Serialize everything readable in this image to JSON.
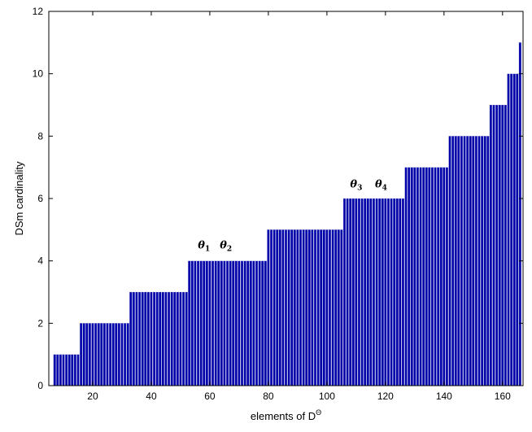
{
  "chart_data": {
    "type": "bar",
    "title": "",
    "xlabel": "elements of D",
    "xlabel_superscript": "Θ",
    "ylabel": "DSm cardinality",
    "xlim": [
      5,
      167
    ],
    "ylim": [
      0,
      12
    ],
    "xticks": [
      "20",
      "40",
      "60",
      "80",
      "100",
      "120",
      "140",
      "160"
    ],
    "yticks": [
      "0",
      "2",
      "4",
      "6",
      "8",
      "10",
      "12"
    ],
    "grid": false,
    "bar_color": "#0000a8",
    "bar_edge_color": "#a9a9e0",
    "steps": [
      {
        "x_from": 7,
        "x_to": 15,
        "value": 1
      },
      {
        "x_from": 16,
        "x_to": 32,
        "value": 2
      },
      {
        "x_from": 33,
        "x_to": 52,
        "value": 3
      },
      {
        "x_from": 53,
        "x_to": 79,
        "value": 4
      },
      {
        "x_from": 80,
        "x_to": 105,
        "value": 5
      },
      {
        "x_from": 106,
        "x_to": 126,
        "value": 6
      },
      {
        "x_from": 127,
        "x_to": 141,
        "value": 7
      },
      {
        "x_from": 142,
        "x_to": 155,
        "value": 8
      },
      {
        "x_from": 156,
        "x_to": 161,
        "value": 9
      },
      {
        "x_from": 162,
        "x_to": 165,
        "value": 10
      },
      {
        "x_from": 166,
        "x_to": 166,
        "value": 11
      }
    ],
    "annotations": [
      {
        "symbol": "θ",
        "subscript": "1",
        "x": 58,
        "y": 4.4
      },
      {
        "symbol": "θ",
        "subscript": "2",
        "x": 65.5,
        "y": 4.4
      },
      {
        "symbol": "θ",
        "subscript": "3",
        "x": 110,
        "y": 6.35
      },
      {
        "symbol": "θ",
        "subscript": "4",
        "x": 118.5,
        "y": 6.35
      }
    ]
  }
}
